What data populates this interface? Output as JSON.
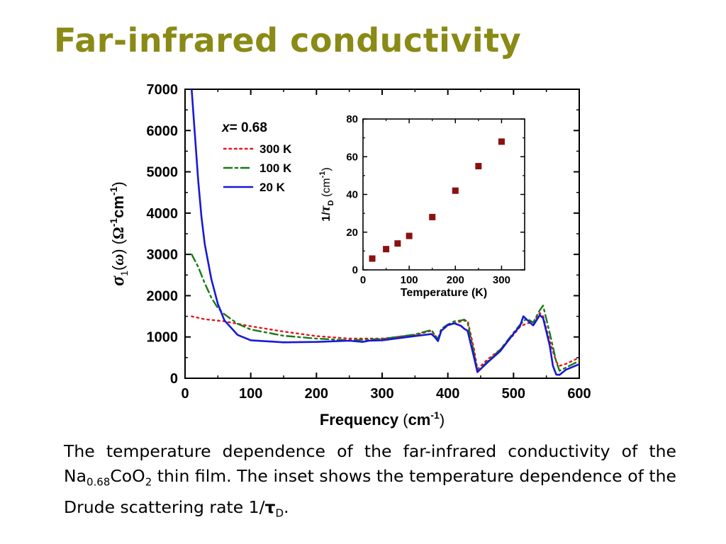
{
  "slide": {
    "title": "Far-infrared conductivity",
    "caption": {
      "part1": "The temperature dependence of the far-infrared conductivity of the Na",
      "sub1": "0.68",
      "part2": "CoO",
      "sub2": "2",
      "part3": " thin film. The inset shows the temperature dependence of the Drude scattering rate 1/",
      "tau": "τ",
      "sub3": "D",
      "end": "."
    }
  },
  "chart_data": [
    {
      "type": "line",
      "title": "",
      "xlabel": "Frequency (cm-1)",
      "xlabel_parts": {
        "main": "Frequency ",
        "open": "(",
        "unit": "cm",
        "exp": "-1",
        "close": ")"
      },
      "ylabel": "σ1(ω) (Ω-1cm-1)",
      "ylabel_parts": {
        "sigma": "σ",
        "sub": "1",
        "paren_open": "(",
        "omega": "ω",
        "paren_close": ")",
        "unit_open": " (",
        "Omega": "Ω",
        "exp1": "-1",
        "cm": "cm",
        "exp2": "-1",
        "unit_close": ")"
      },
      "xlim": [
        0,
        600
      ],
      "ylim": [
        0,
        7000
      ],
      "xticks": [
        0,
        100,
        200,
        300,
        400,
        500,
        600
      ],
      "yticks": [
        0,
        1000,
        2000,
        3000,
        4000,
        5000,
        6000,
        7000
      ],
      "grid": false,
      "legend": {
        "placement": "top-left",
        "title_var": "x",
        "title_value": "= 0.68"
      },
      "series": [
        {
          "name": "300 K",
          "color": "#e8161c",
          "dash": "dotted",
          "x": [
            10,
            30,
            60,
            100,
            150,
            200,
            250,
            300,
            350,
            375,
            380,
            385,
            390,
            400,
            420,
            430,
            440,
            445,
            460,
            480,
            500,
            510,
            520,
            530,
            540,
            545,
            555,
            565,
            570,
            580,
            600
          ],
          "y": [
            1500,
            1430,
            1380,
            1260,
            1130,
            1020,
            960,
            960,
            1050,
            1150,
            1050,
            950,
            1150,
            1280,
            1380,
            1400,
            700,
            220,
            450,
            700,
            1050,
            1250,
            1330,
            1350,
            1580,
            1500,
            900,
            400,
            300,
            350,
            500
          ]
        },
        {
          "name": "100 K",
          "color": "#177a17",
          "dash": "dashdot",
          "x": [
            10,
            20,
            30,
            40,
            50,
            60,
            80,
            100,
            150,
            200,
            250,
            300,
            350,
            375,
            380,
            385,
            390,
            400,
            410,
            420,
            425,
            430,
            440,
            445,
            460,
            480,
            500,
            510,
            520,
            530,
            540,
            545,
            555,
            565,
            570,
            580,
            600
          ],
          "y": [
            3000,
            2700,
            2300,
            1950,
            1700,
            1550,
            1320,
            1180,
            1030,
            960,
            920,
            950,
            1060,
            1170,
            1050,
            950,
            1200,
            1300,
            1380,
            1400,
            1420,
            1350,
            600,
            160,
            400,
            700,
            1100,
            1300,
            1450,
            1350,
            1650,
            1760,
            1100,
            400,
            180,
            260,
            420
          ]
        },
        {
          "name": "20 K",
          "color": "#1818d8",
          "dash": "solid",
          "x": [
            10,
            15,
            20,
            25,
            30,
            40,
            50,
            60,
            80,
            100,
            150,
            200,
            250,
            270,
            280,
            300,
            350,
            375,
            380,
            385,
            390,
            400,
            410,
            420,
            425,
            430,
            440,
            445,
            460,
            480,
            500,
            510,
            515,
            520,
            530,
            540,
            545,
            555,
            560,
            565,
            570,
            580,
            600
          ],
          "y": [
            7000,
            5900,
            4800,
            3900,
            3250,
            2400,
            1800,
            1400,
            1050,
            920,
            870,
            880,
            910,
            880,
            910,
            920,
            1020,
            1070,
            1000,
            900,
            1150,
            1290,
            1330,
            1270,
            1200,
            1150,
            500,
            150,
            380,
            660,
            1080,
            1270,
            1500,
            1420,
            1280,
            1530,
            1460,
            800,
            300,
            90,
            80,
            210,
            340
          ]
        }
      ]
    },
    {
      "type": "scatter",
      "title": "",
      "xlabel": "Temperature (K)",
      "ylabel": "1/τD (cm-1)",
      "ylabel_parts": {
        "one": "1/",
        "tau": "τ",
        "sub": "D",
        "unit_open": " (cm",
        "exp": "-1",
        "unit_close": ")"
      },
      "xlim": [
        0,
        350
      ],
      "ylim": [
        0,
        80
      ],
      "xticks": [
        0,
        100,
        200,
        300
      ],
      "yticks": [
        0,
        20,
        40,
        60,
        80
      ],
      "grid": false,
      "marker_color": "#8b1010",
      "x": [
        20,
        50,
        75,
        100,
        150,
        200,
        250,
        300
      ],
      "y": [
        6,
        11,
        14,
        18,
        28,
        42,
        55,
        68
      ]
    }
  ]
}
